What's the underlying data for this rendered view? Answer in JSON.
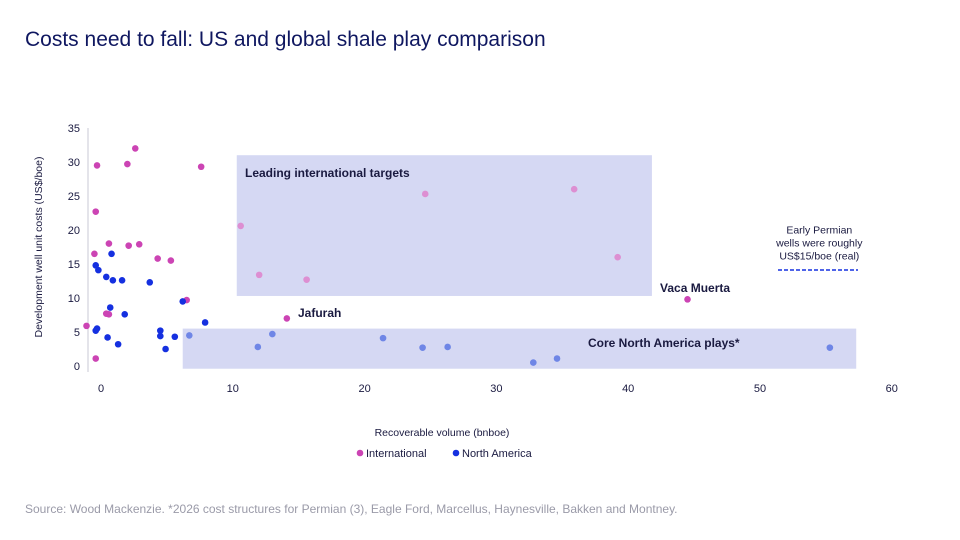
{
  "title": "Costs need to fall: US and global shale play comparison",
  "source": "Source: Wood Mackenzie. *2026 cost structures for Permian (3), Eagle Ford, Marcellus, Haynesville, Bakken and Montney.",
  "colors": {
    "international": "#cc44b4",
    "international_light": "#dd8fd2",
    "north_america": "#1530e0",
    "north_america_light": "#6f86e6",
    "box": "#d5d8f3",
    "text_dark": "#1a1a40"
  },
  "chart_data": {
    "type": "scatter",
    "xlabel": "Recoverable volume (bnboe)",
    "ylabel": "Development well unit costs (US$/boe)",
    "xlim": [
      -1,
      60
    ],
    "ylim": [
      0,
      35
    ],
    "xticks": [
      0,
      10,
      20,
      30,
      40,
      50,
      60
    ],
    "yticks": [
      0,
      5,
      10,
      15,
      20,
      25,
      30,
      35
    ],
    "grid": false,
    "legend": "bottom-center",
    "series": [
      {
        "name": "International",
        "color": "#cc44b4",
        "points": [
          [
            -0.3,
            29.5
          ],
          [
            2.6,
            32
          ],
          [
            2.0,
            29.7
          ],
          [
            7.6,
            29.3
          ],
          [
            -0.4,
            22.7
          ],
          [
            -0.5,
            16.5
          ],
          [
            0.6,
            18
          ],
          [
            2.1,
            17.7
          ],
          [
            2.9,
            17.9
          ],
          [
            4.3,
            15.8
          ],
          [
            5.3,
            15.5
          ],
          [
            0.4,
            7.7
          ],
          [
            0.6,
            7.6
          ],
          [
            -1.1,
            5.9
          ],
          [
            6.5,
            9.7
          ],
          [
            14.1,
            7.0
          ],
          [
            44.5,
            9.8
          ],
          [
            -0.4,
            1.1
          ]
        ]
      },
      {
        "name": "International (light)",
        "color": "#dd8fd2",
        "points": [
          [
            10.6,
            20.6
          ],
          [
            12.0,
            13.4
          ],
          [
            15.6,
            12.7
          ],
          [
            24.6,
            25.3
          ],
          [
            35.9,
            26.0
          ],
          [
            39.2,
            16.0
          ]
        ]
      },
      {
        "name": "North America",
        "color": "#1530e0",
        "points": [
          [
            -0.4,
            14.8
          ],
          [
            -0.2,
            14.1
          ],
          [
            0.4,
            13.1
          ],
          [
            0.8,
            16.5
          ],
          [
            0.9,
            12.6
          ],
          [
            1.6,
            12.6
          ],
          [
            3.7,
            12.3
          ],
          [
            0.7,
            8.6
          ],
          [
            1.8,
            7.6
          ],
          [
            6.2,
            9.5
          ],
          [
            7.9,
            6.4
          ],
          [
            -0.3,
            5.5
          ],
          [
            -0.4,
            5.2
          ],
          [
            0.5,
            4.2
          ],
          [
            1.3,
            3.2
          ],
          [
            4.5,
            5.2
          ],
          [
            4.5,
            4.4
          ],
          [
            5.6,
            4.3
          ],
          [
            4.9,
            2.5
          ]
        ]
      },
      {
        "name": "North America (light)",
        "color": "#6f86e6",
        "points": [
          [
            6.7,
            4.5
          ],
          [
            11.9,
            2.8
          ],
          [
            13.0,
            4.7
          ],
          [
            21.4,
            4.1
          ],
          [
            24.4,
            2.7
          ],
          [
            26.3,
            2.8
          ],
          [
            32.8,
            0.5
          ],
          [
            34.6,
            1.1
          ],
          [
            55.3,
            2.7
          ]
        ]
      }
    ],
    "annotations": [
      {
        "text": "Leading international targets",
        "x": 10.3,
        "y": 29.3,
        "style": "bold"
      },
      {
        "text": "Core North America plays*",
        "x": 37,
        "y": 3.5,
        "style": "bold"
      },
      {
        "text": "Vaca Muerta",
        "x": 42.5,
        "y": 11.2,
        "style": "bold"
      },
      {
        "text": "Jafurah",
        "x": 14.9,
        "y": 8.0,
        "style": "bold"
      },
      {
        "text": "Early Permian wells were roughly US$15/boe (real)",
        "lines": [
          "Early Permian",
          "wells were roughly",
          "US$15/boe (real)"
        ],
        "x": 54.5,
        "y": 19.5,
        "style": "normal"
      }
    ],
    "regions": [
      {
        "label": "Leading international targets",
        "x": [
          10.3,
          41.8
        ],
        "y": [
          10.3,
          31.0
        ]
      },
      {
        "label": "Core North America plays*",
        "x": [
          6.2,
          57.3
        ],
        "y": [
          -0.4,
          5.5
        ]
      }
    ]
  }
}
